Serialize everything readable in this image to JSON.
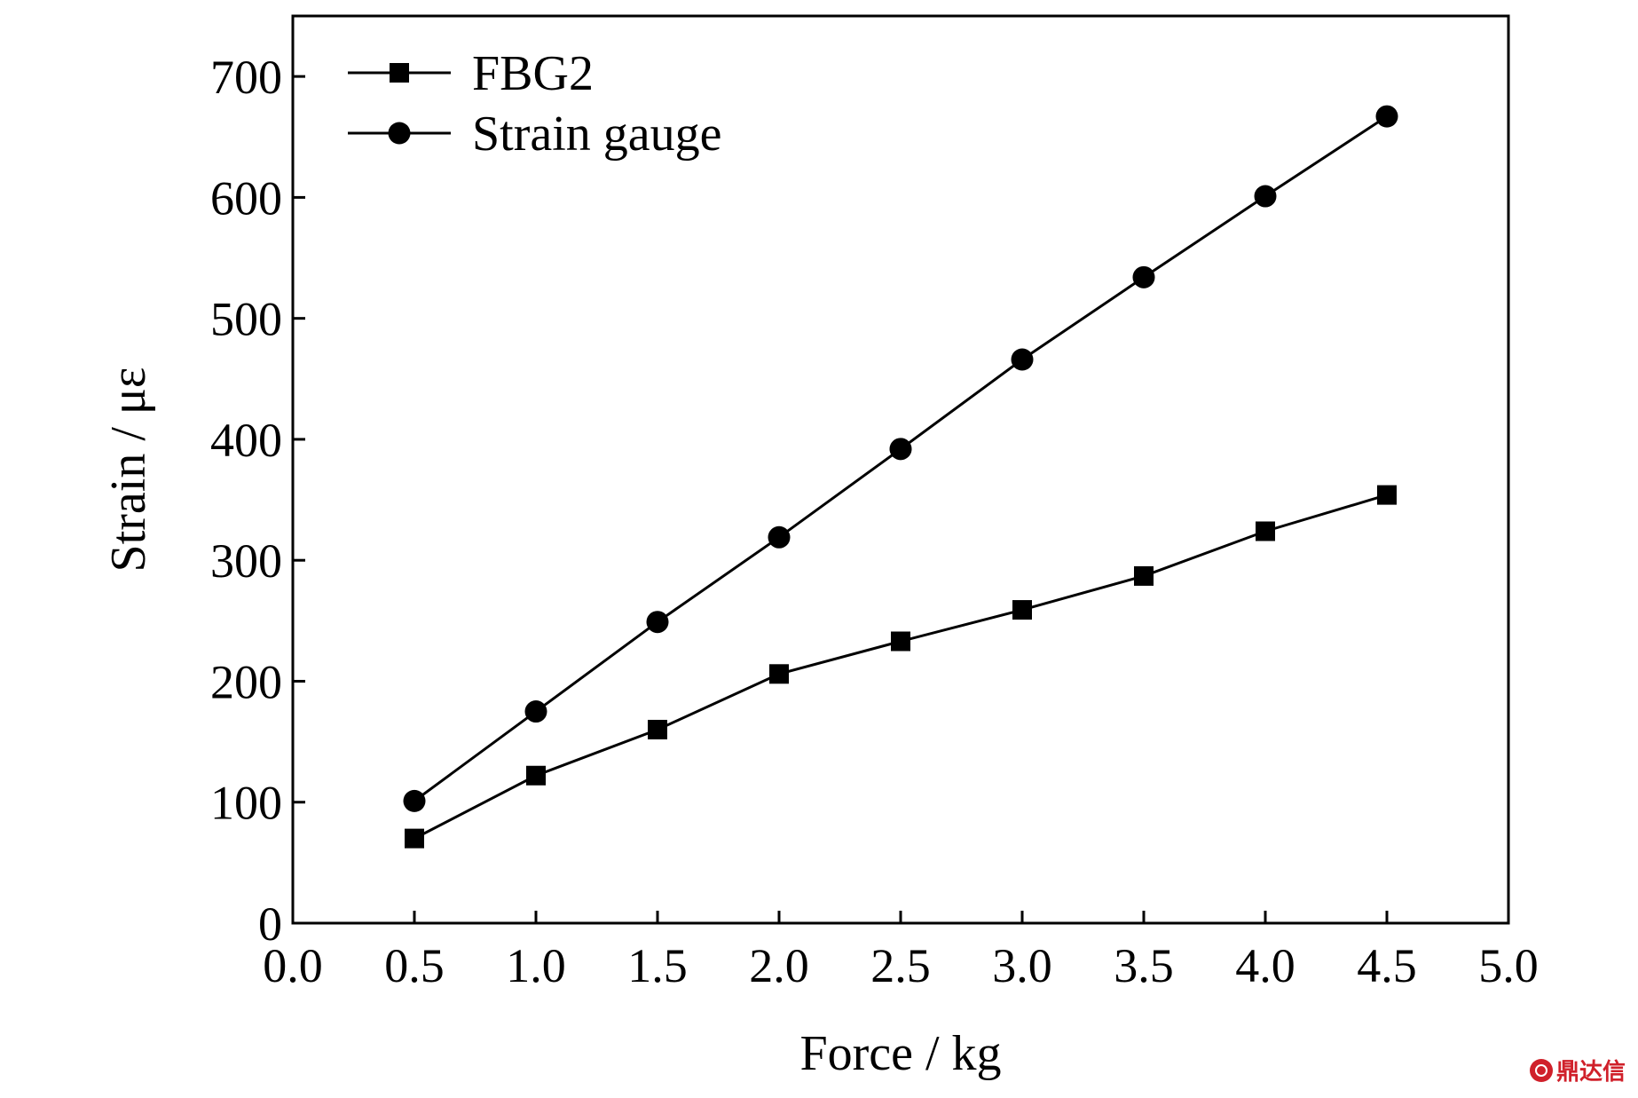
{
  "chart_data": {
    "type": "line",
    "title": "",
    "xlabel": "Force / kg",
    "ylabel": "Strain / με",
    "xlim": [
      0.0,
      5.0
    ],
    "ylim": [
      0,
      750
    ],
    "xticks": [
      0.0,
      0.5,
      1.0,
      1.5,
      2.0,
      2.5,
      3.0,
      3.5,
      4.0,
      4.5,
      5.0
    ],
    "xtick_labels": [
      "0.0",
      "0.5",
      "1.0",
      "1.5",
      "2.0",
      "2.5",
      "3.0",
      "3.5",
      "4.0",
      "4.5",
      "5.0"
    ],
    "yticks": [
      0,
      100,
      200,
      300,
      400,
      500,
      600,
      700
    ],
    "ytick_labels": [
      "0",
      "100",
      "200",
      "300",
      "400",
      "500",
      "600",
      "700"
    ],
    "grid": false,
    "legend_position": "top-left",
    "x": [
      0.5,
      1.0,
      1.5,
      2.0,
      2.5,
      3.0,
      3.5,
      4.0,
      4.5
    ],
    "series": [
      {
        "name": "FBG2",
        "marker": "square",
        "color": "#000000",
        "values": [
          70,
          122,
          160,
          206,
          233,
          259,
          287,
          324,
          354
        ]
      },
      {
        "name": "Strain gauge",
        "marker": "circle",
        "color": "#000000",
        "values": [
          101,
          175,
          249,
          319,
          392,
          466,
          534,
          601,
          667
        ]
      }
    ]
  },
  "watermark": {
    "text": "鼎达信",
    "color": "#d0202a"
  }
}
